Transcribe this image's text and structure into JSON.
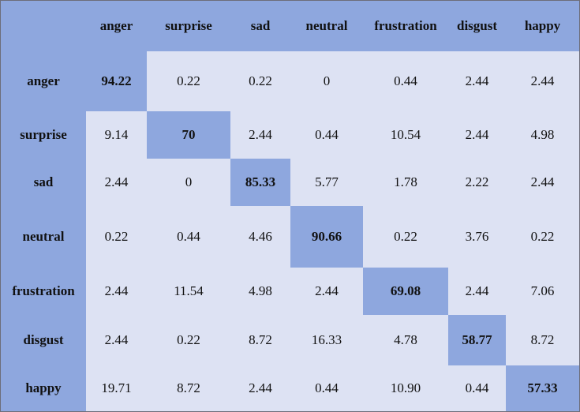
{
  "chart_data": {
    "type": "table",
    "subtype": "confusion-matrix",
    "rows": [
      "anger",
      "surprise",
      "sad",
      "neutral",
      "frustration",
      "disgust",
      "happy"
    ],
    "columns": [
      "anger",
      "surprise",
      "sad",
      "neutral",
      "frustration",
      "disgust",
      "happy"
    ],
    "values": [
      [
        "94.22",
        "0.22",
        "0.22",
        "0",
        "0.44",
        "2.44",
        "2.44"
      ],
      [
        "9.14",
        "70",
        "2.44",
        "0.44",
        "10.54",
        "2.44",
        "4.98"
      ],
      [
        "2.44",
        "0",
        "85.33",
        "5.77",
        "1.78",
        "2.22",
        "2.44"
      ],
      [
        "0.22",
        "0.44",
        "4.46",
        "90.66",
        "0.22",
        "3.76",
        "0.22"
      ],
      [
        "2.44",
        "11.54",
        "4.98",
        "2.44",
        "69.08",
        "2.44",
        "7.06"
      ],
      [
        "2.44",
        "0.22",
        "8.72",
        "16.33",
        "4.78",
        "58.77",
        "8.72"
      ],
      [
        "19.71",
        "8.72",
        "2.44",
        "0.44",
        "10.90",
        "0.44",
        "57.33"
      ]
    ],
    "highlight": "diagonal",
    "colors": {
      "header_fill": "#8ea7de",
      "diagonal_fill": "#8ea7de",
      "cell_fill": "#dde2f3",
      "border": "#6d6d7a",
      "text": "#111111"
    }
  }
}
